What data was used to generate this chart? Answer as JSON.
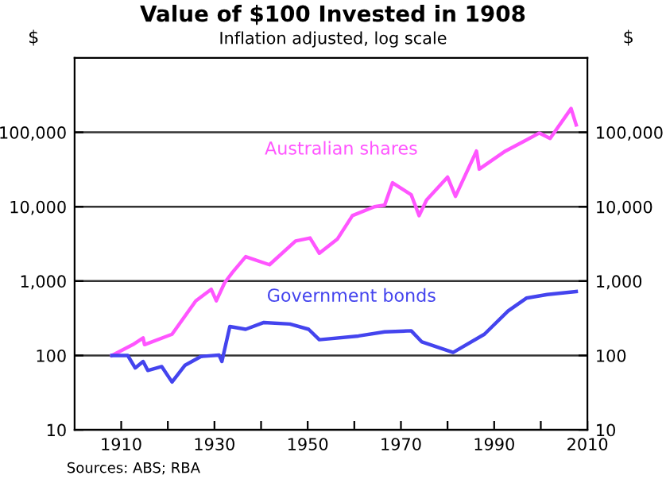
{
  "chart_data": {
    "type": "line",
    "title": "Value of $100 Invested in 1908",
    "subtitle": "Inflation adjusted, log scale",
    "ylabel": "$",
    "y2label": "$",
    "annotations": [
      "Sources: ABS; RBA"
    ],
    "log": "y",
    "grid": "y",
    "legend": false,
    "xlim": [
      1900,
      2010
    ],
    "xticks": [
      {
        "value": 1910,
        "label": "1910"
      },
      {
        "value": 1920,
        "label": null
      },
      {
        "value": 1930,
        "label": "1930"
      },
      {
        "value": 1940,
        "label": null
      },
      {
        "value": 1950,
        "label": "1950"
      },
      {
        "value": 1960,
        "label": null
      },
      {
        "value": 1970,
        "label": "1970"
      },
      {
        "value": 1980,
        "label": null
      },
      {
        "value": 1990,
        "label": "1990"
      },
      {
        "value": 2000,
        "label": null
      },
      {
        "value": 2010,
        "label": "2010"
      }
    ],
    "ylim": [
      10,
      1000000
    ],
    "yticks": [
      {
        "value": 10,
        "label": "10"
      },
      {
        "value": 100,
        "label": "100"
      },
      {
        "value": 1000,
        "label": "1,000"
      },
      {
        "value": 10000,
        "label": "10,000"
      },
      {
        "value": 100000,
        "label": "100,000"
      }
    ],
    "series": [
      {
        "name": "Australian shares",
        "color": "#ff55ff",
        "x": [
          1908,
          1912.5,
          1914.7,
          1915,
          1920.9,
          1926,
          1929.3,
          1930.4,
          1932.2,
          1933.9,
          1936.7,
          1941.8,
          1947.4,
          1950.5,
          1952.5,
          1956.4,
          1959.6,
          1964.3,
          1966.5,
          1968.2,
          1972.2,
          1973.9,
          1975.5,
          1980,
          1981.7,
          1986.2,
          1986.8,
          1992.4,
          1996.9,
          1999.7,
          2002,
          2006.5,
          2007.6
        ],
        "values": [
          100,
          140,
          172,
          140,
          193,
          543,
          776,
          543,
          955,
          1320,
          2130,
          1660,
          3460,
          3800,
          2370,
          3700,
          7600,
          10000,
          10500,
          21000,
          14500,
          7600,
          12300,
          25000,
          13800,
          56000,
          32000,
          56000,
          79000,
          98000,
          83000,
          209000,
          126000
        ]
      },
      {
        "name": "Government bonds",
        "color": "#4444ee",
        "x": [
          1908,
          1911.4,
          1913,
          1914.7,
          1915.7,
          1918.7,
          1920.9,
          1923.7,
          1927.1,
          1931,
          1931.6,
          1933.3,
          1936.7,
          1940.6,
          1946.2,
          1950.2,
          1952.5,
          1960.9,
          1966.5,
          1972.2,
          1974.5,
          1981.2,
          1987.9,
          1993,
          1996.9,
          2001.4,
          2007.6
        ],
        "values": [
          100,
          100,
          68,
          83,
          63,
          71,
          44,
          74,
          97,
          101,
          83,
          245,
          225,
          278,
          265,
          225,
          163,
          183,
          208,
          215,
          152,
          110,
          193,
          397,
          590,
          660,
          725
        ]
      }
    ]
  }
}
